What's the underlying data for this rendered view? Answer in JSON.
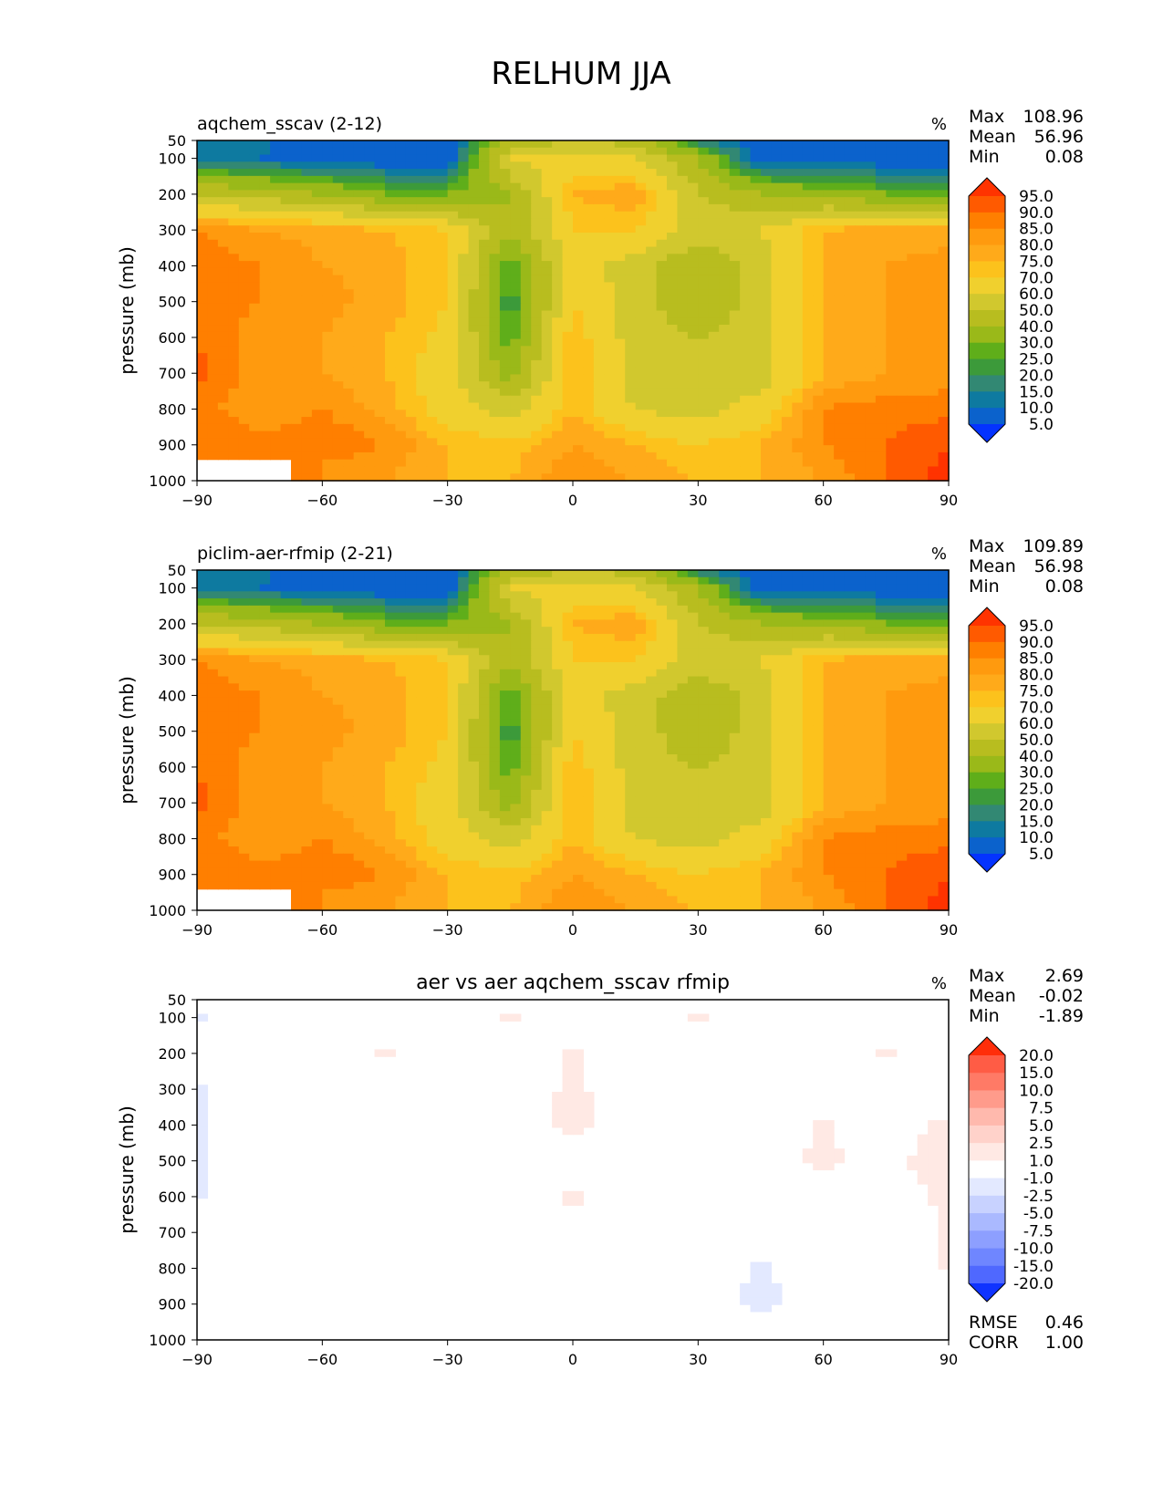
{
  "figure": {
    "title": "RELHUM JJA"
  },
  "panels": [
    {
      "key": "p1",
      "title": "aqchem_sscav (2-12)",
      "units": "%",
      "stats": [
        {
          "label": "Max",
          "value": "108.96"
        },
        {
          "label": "Mean",
          "value": "56.96"
        },
        {
          "label": "Min",
          "value": "0.08"
        }
      ],
      "levels": [
        "95.0",
        "90.0",
        "85.0",
        "80.0",
        "75.0",
        "70.0",
        "60.0",
        "50.0",
        "40.0",
        "30.0",
        "25.0",
        "20.0",
        "15.0",
        "10.0",
        "5.0"
      ],
      "colors": [
        "#ff3300",
        "#ff5a00",
        "#ff7f00",
        "#ff9a0e",
        "#ffaa1a",
        "#fcc21c",
        "#f0d02e",
        "#d1c82e",
        "#b8bd1f",
        "#9ab919",
        "#5fae1a",
        "#3c9a3a",
        "#328873",
        "#0e7aa0",
        "#0b62cc",
        "#0433ff"
      ],
      "bottom_stats": []
    },
    {
      "key": "p2",
      "title": "piclim-aer-rfmip (2-21)",
      "units": "%",
      "stats": [
        {
          "label": "Max",
          "value": "109.89"
        },
        {
          "label": "Mean",
          "value": "56.98"
        },
        {
          "label": "Min",
          "value": "0.08"
        }
      ],
      "levels": [
        "95.0",
        "90.0",
        "85.0",
        "80.0",
        "75.0",
        "70.0",
        "60.0",
        "50.0",
        "40.0",
        "30.0",
        "25.0",
        "20.0",
        "15.0",
        "10.0",
        "5.0"
      ],
      "colors": [
        "#ff3300",
        "#ff5a00",
        "#ff7f00",
        "#ff9a0e",
        "#ffaa1a",
        "#fcc21c",
        "#f0d02e",
        "#d1c82e",
        "#b8bd1f",
        "#9ab919",
        "#5fae1a",
        "#3c9a3a",
        "#328873",
        "#0e7aa0",
        "#0b62cc",
        "#0433ff"
      ],
      "bottom_stats": []
    },
    {
      "key": "p3",
      "title": "aer vs aer aqchem_sscav rfmip",
      "units": "%",
      "stats": [
        {
          "label": "Max",
          "value": "2.69"
        },
        {
          "label": "Mean",
          "value": "-0.02"
        },
        {
          "label": "Min",
          "value": "-1.89"
        }
      ],
      "levels": [
        "20.0",
        "15.0",
        "10.0",
        "7.5",
        "5.0",
        "2.5",
        "1.0",
        "-1.0",
        "-2.5",
        "-5.0",
        "-7.5",
        "-10.0",
        "-15.0",
        "-20.0"
      ],
      "colors": [
        "#ff2e0a",
        "#ff5c45",
        "#ff7a66",
        "#ff9b8b",
        "#ffb9ad",
        "#ffd2ca",
        "#ffe9e4",
        "#ffffff",
        "#e3e9ff",
        "#c8d2ff",
        "#aab9ff",
        "#8d9fff",
        "#6f86ff",
        "#4f68ff",
        "#0f33ff"
      ],
      "bottom_stats": [
        {
          "label": "RMSE",
          "value": "0.46"
        },
        {
          "label": "CORR",
          "value": "1.00"
        }
      ]
    }
  ],
  "axes": {
    "ylabel": "pressure (mb)",
    "yticks": [
      50,
      100,
      200,
      300,
      400,
      500,
      600,
      700,
      800,
      900,
      1000
    ],
    "xticks": [
      "−90",
      "−60",
      "−30",
      "0",
      "30",
      "60",
      "90"
    ],
    "xlim": [
      -90,
      90
    ],
    "ylim": [
      1000,
      50
    ]
  },
  "chart_data": [
    {
      "type": "heatmap",
      "title": "aqchem_sscav (2-12)",
      "xlabel": "",
      "ylabel": "pressure (mb)",
      "xlim": [
        -90,
        90
      ],
      "ylim": [
        1000,
        50
      ],
      "units": "%",
      "x": [
        -90,
        -75,
        -60,
        -45,
        -30,
        -15,
        0,
        15,
        30,
        45,
        60,
        75,
        90
      ],
      "y": [
        50,
        100,
        200,
        300,
        400,
        500,
        600,
        700,
        800,
        900,
        1000
      ],
      "z": [
        [
          12,
          12,
          5,
          5,
          5,
          40,
          50,
          45,
          15,
          5,
          5,
          5,
          5
        ],
        [
          12,
          10,
          5,
          5,
          5,
          60,
          65,
          60,
          40,
          5,
          5,
          5,
          5
        ],
        [
          50,
          45,
          40,
          30,
          30,
          40,
          75,
          80,
          50,
          40,
          35,
          30,
          28
        ],
        [
          85,
          80,
          78,
          75,
          70,
          40,
          70,
          70,
          55,
          60,
          75,
          78,
          78
        ],
        [
          88,
          85,
          80,
          78,
          70,
          25,
          65,
          55,
          40,
          55,
          75,
          80,
          82
        ],
        [
          88,
          85,
          82,
          78,
          70,
          20,
          70,
          55,
          40,
          55,
          75,
          80,
          85
        ],
        [
          90,
          82,
          80,
          75,
          68,
          25,
          75,
          55,
          50,
          55,
          75,
          80,
          82
        ],
        [
          92,
          82,
          80,
          75,
          65,
          35,
          75,
          55,
          50,
          55,
          75,
          80,
          82
        ],
        [
          88,
          80,
          85,
          78,
          65,
          55,
          75,
          60,
          55,
          65,
          85,
          88,
          88
        ],
        [
          90,
          88,
          90,
          85,
          75,
          72,
          80,
          75,
          70,
          75,
          85,
          90,
          95
        ],
        [
          null,
          null,
          80,
          80,
          75,
          75,
          85,
          80,
          75,
          75,
          80,
          90,
          98
        ]
      ]
    },
    {
      "type": "heatmap",
      "title": "piclim-aer-rfmip (2-21)",
      "xlabel": "",
      "ylabel": "pressure (mb)",
      "xlim": [
        -90,
        90
      ],
      "ylim": [
        1000,
        50
      ],
      "units": "%",
      "x": [
        -90,
        -75,
        -60,
        -45,
        -30,
        -15,
        0,
        15,
        30,
        45,
        60,
        75,
        90
      ],
      "y": [
        50,
        100,
        200,
        300,
        400,
        500,
        600,
        700,
        800,
        900,
        1000
      ],
      "z": [
        [
          12,
          12,
          5,
          5,
          5,
          40,
          50,
          45,
          15,
          5,
          5,
          5,
          5
        ],
        [
          12,
          10,
          5,
          5,
          5,
          60,
          65,
          60,
          40,
          5,
          5,
          5,
          5
        ],
        [
          50,
          45,
          40,
          30,
          30,
          40,
          75,
          80,
          50,
          40,
          35,
          30,
          28
        ],
        [
          85,
          80,
          78,
          75,
          70,
          40,
          70,
          70,
          55,
          60,
          75,
          78,
          78
        ],
        [
          88,
          85,
          80,
          78,
          70,
          25,
          65,
          55,
          42,
          55,
          75,
          80,
          82
        ],
        [
          88,
          85,
          82,
          78,
          70,
          20,
          70,
          55,
          42,
          55,
          75,
          80,
          85
        ],
        [
          90,
          82,
          80,
          75,
          68,
          25,
          75,
          55,
          50,
          55,
          75,
          80,
          82
        ],
        [
          92,
          82,
          80,
          75,
          65,
          35,
          75,
          55,
          50,
          55,
          75,
          80,
          82
        ],
        [
          88,
          80,
          85,
          78,
          65,
          55,
          75,
          60,
          55,
          65,
          85,
          88,
          88
        ],
        [
          90,
          88,
          90,
          85,
          75,
          72,
          80,
          75,
          70,
          75,
          85,
          90,
          95
        ],
        [
          null,
          null,
          80,
          80,
          75,
          75,
          85,
          80,
          75,
          75,
          80,
          90,
          98
        ]
      ]
    },
    {
      "type": "heatmap",
      "title": "aer vs aer aqchem_sscav rfmip",
      "xlabel": "",
      "ylabel": "pressure (mb)",
      "xlim": [
        -90,
        90
      ],
      "ylim": [
        1000,
        50
      ],
      "units": "%",
      "x": [
        -90,
        -75,
        -60,
        -45,
        -30,
        -15,
        0,
        15,
        30,
        45,
        60,
        75,
        90
      ],
      "y": [
        50,
        100,
        200,
        300,
        400,
        500,
        600,
        700,
        800,
        900,
        1000
      ],
      "z": [
        [
          0,
          0,
          0,
          0,
          0,
          0,
          0,
          0,
          0,
          0,
          0,
          0,
          0
        ],
        [
          -1.2,
          0,
          0,
          0,
          0,
          1.2,
          0,
          0,
          1.2,
          0,
          0,
          0,
          0
        ],
        [
          0,
          0,
          0,
          1.3,
          0,
          0,
          1.3,
          0,
          0,
          0,
          0,
          1.2,
          0
        ],
        [
          -1.3,
          0,
          0,
          0,
          0,
          0,
          1.3,
          0,
          0,
          0,
          0,
          0,
          0
        ],
        [
          -1.3,
          0,
          0,
          0,
          0,
          0,
          1.5,
          0,
          0,
          0,
          1.2,
          0,
          1.4
        ],
        [
          -1.2,
          0,
          0,
          0,
          0,
          0,
          0,
          0,
          0,
          0,
          1.4,
          0,
          2.6
        ],
        [
          -1.1,
          0,
          0,
          0,
          0,
          0,
          1.3,
          0,
          0,
          0,
          0,
          0,
          1.4
        ],
        [
          0,
          0,
          0,
          0,
          0,
          0,
          0,
          0,
          0,
          0,
          0,
          0,
          1.1
        ],
        [
          0,
          0,
          0,
          0,
          0,
          0,
          0,
          0,
          0,
          -1.3,
          0,
          0,
          1.2
        ],
        [
          0,
          -1.1,
          0,
          0,
          0,
          0,
          0,
          0,
          0,
          -1.4,
          0,
          0,
          0
        ],
        [
          0,
          0,
          0,
          0,
          0,
          0,
          0,
          0,
          0,
          0,
          0,
          0,
          0
        ]
      ]
    }
  ]
}
